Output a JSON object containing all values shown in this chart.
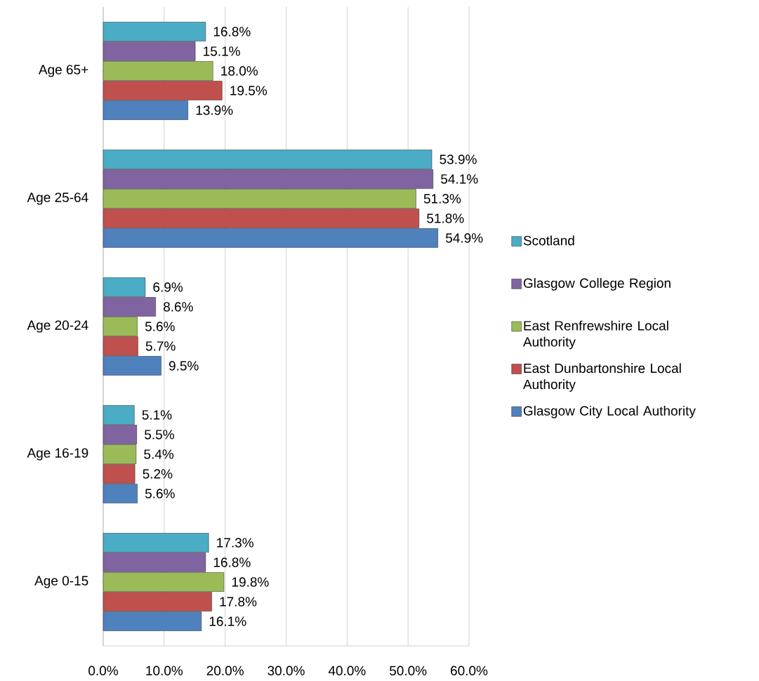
{
  "chart_data": {
    "type": "bar",
    "orientation": "horizontal",
    "categories": [
      "Age 65+",
      "Age 25-64",
      "Age 20-24",
      "Age 16-19",
      "Age 0-15"
    ],
    "series": [
      {
        "name": "Scotland",
        "color": "#4bacc6",
        "values": [
          16.8,
          53.9,
          6.9,
          5.1,
          17.3
        ],
        "value_labels": [
          "16.8%",
          "53.9%",
          "6.9%",
          "5.1%",
          "17.3%"
        ]
      },
      {
        "name": "Glasgow College Region",
        "color": "#8064a2",
        "values": [
          15.1,
          54.1,
          8.6,
          5.5,
          16.8
        ],
        "value_labels": [
          "15.1%",
          "54.1%",
          "8.6%",
          "5.5%",
          "16.8%"
        ]
      },
      {
        "name": "East Renfrewshire Local Authority",
        "color": "#9bbb59",
        "values": [
          18.0,
          51.3,
          5.6,
          5.4,
          19.8
        ],
        "value_labels": [
          "18.0%",
          "51.3%",
          "5.6%",
          "5.4%",
          "19.8%"
        ]
      },
      {
        "name": "East Dunbartonshire Local Authority",
        "color": "#c0504d",
        "values": [
          19.5,
          51.8,
          5.7,
          5.2,
          17.8
        ],
        "value_labels": [
          "19.5%",
          "51.8%",
          "5.7%",
          "5.2%",
          "17.8%"
        ]
      },
      {
        "name": "Glasgow City Local Authority",
        "color": "#4f81bd",
        "values": [
          13.9,
          54.9,
          9.5,
          5.6,
          16.1
        ],
        "value_labels": [
          "13.9%",
          "54.9%",
          "9.5%",
          "5.6%",
          "16.1%"
        ]
      }
    ],
    "xlim": [
      0,
      60
    ],
    "xticks": [
      {
        "value": 0,
        "label": "0.0%"
      },
      {
        "value": 10,
        "label": "10.0%"
      },
      {
        "value": 20,
        "label": "20.0%"
      },
      {
        "value": 30,
        "label": "30.0%"
      },
      {
        "value": 40,
        "label": "40.0%"
      },
      {
        "value": 50,
        "label": "50.0%"
      },
      {
        "value": 60,
        "label": "60.0%"
      }
    ],
    "grid": "x",
    "legend": "right"
  }
}
